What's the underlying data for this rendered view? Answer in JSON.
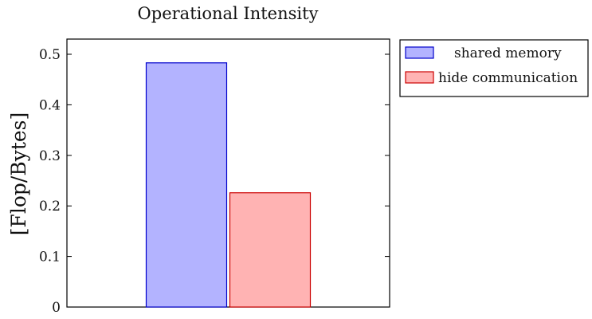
{
  "chart_data": {
    "type": "bar",
    "title": "Operational Intensity",
    "xlabel": "",
    "ylabel": "[Flop/Bytes]",
    "categories": [
      ""
    ],
    "ylim": [
      0,
      0.53
    ],
    "yticks": [
      0,
      0.1,
      0.2,
      0.3,
      0.4,
      0.5
    ],
    "ytick_labels": [
      "0",
      "0.1",
      "0.2",
      "0.3",
      "0.4",
      "0.5"
    ],
    "grid": false,
    "legend_position": "outside-top-right",
    "series": [
      {
        "name": "shared memory",
        "values": [
          0.483
        ],
        "fill": "#b3b3ff",
        "stroke": "#0000cc"
      },
      {
        "name": "hide communication",
        "values": [
          0.226
        ],
        "fill": "#ffb3b3",
        "stroke": "#cc0000"
      }
    ]
  }
}
